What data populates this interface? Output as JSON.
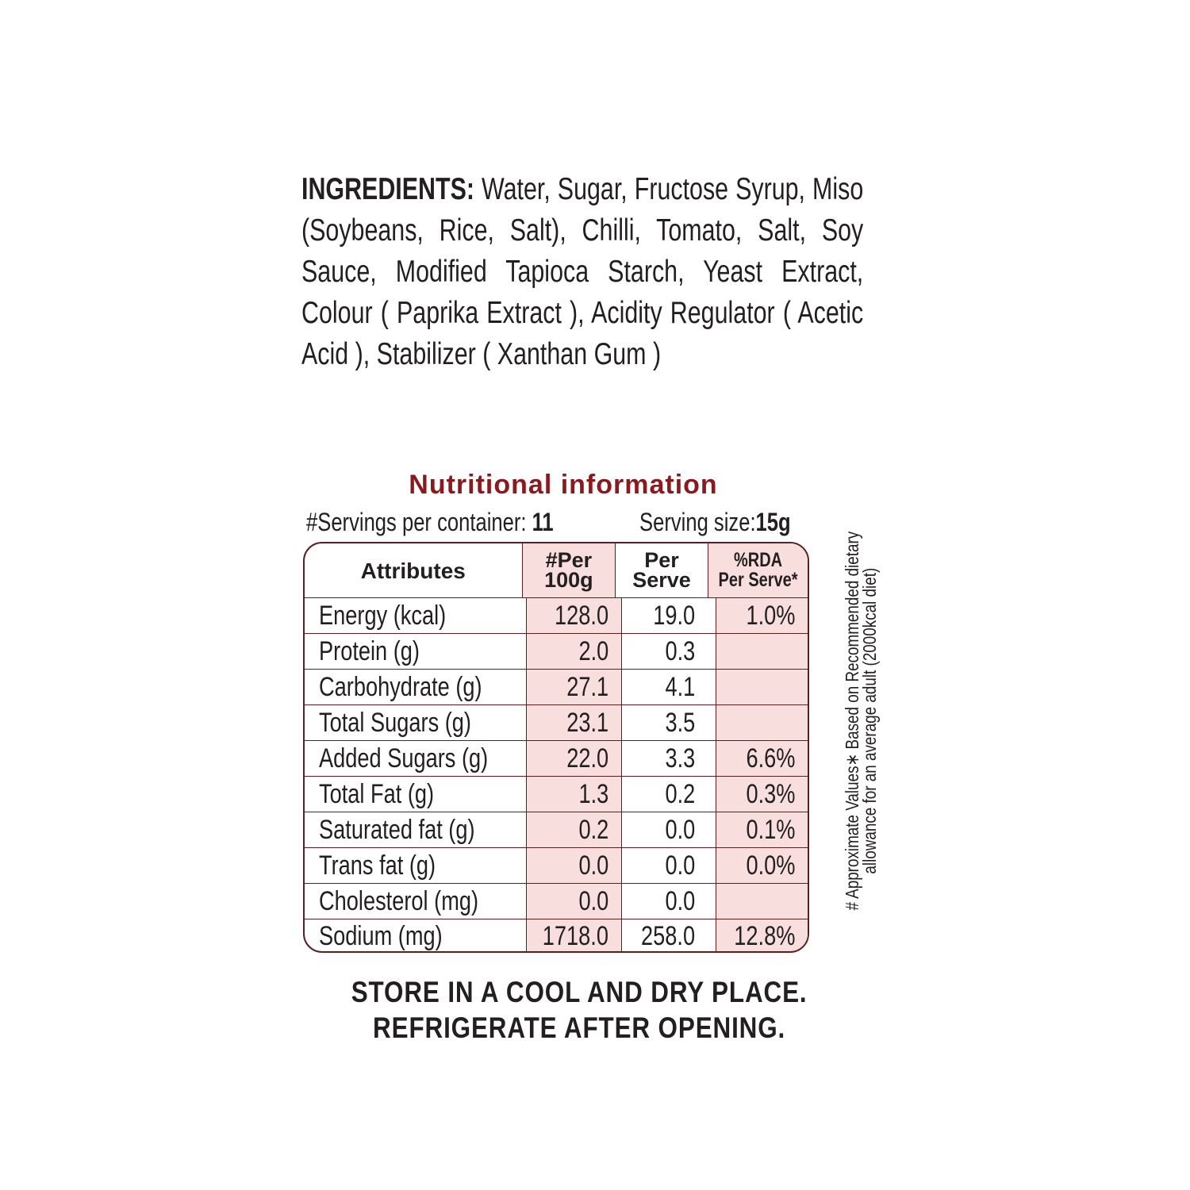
{
  "ingredients": {
    "label": "INGREDIENTS:",
    "text": " Water, Sugar, Fructose Syrup, Miso (Soybeans, Rice, Salt), Chilli, Tomato, Salt, Soy Sauce, Modified Tapioca Starch, Yeast Extract, Colour ( Paprika Extract ), Acidity Regulator ( Acetic Acid ), Stabilizer ( Xanthan Gum )"
  },
  "nutrition": {
    "title": "Nutritional information",
    "servings_label": "#Servings per container: ",
    "servings_value": "11",
    "serving_size_label": "Serving size:",
    "serving_size_value": "15g",
    "headers": [
      "Attributes",
      "#Per",
      "100g",
      "Per",
      "Serve",
      "%RDA",
      "Per Serve*"
    ],
    "rows": [
      [
        "Energy (kcal)",
        "128.0",
        "19.0",
        "1.0%"
      ],
      [
        "Protein (g)",
        "2.0",
        "0.3",
        ""
      ],
      [
        "Carbohydrate (g)",
        "27.1",
        "4.1",
        ""
      ],
      [
        "Total Sugars (g)",
        "23.1",
        "3.5",
        ""
      ],
      [
        "Added Sugars (g)",
        "22.0",
        "3.3",
        "6.6%"
      ],
      [
        "Total Fat (g)",
        "1.3",
        "0.2",
        "0.3%"
      ],
      [
        "Saturated fat (g)",
        "0.2",
        "0.0",
        "0.1%"
      ],
      [
        "Trans fat (g)",
        "0.0",
        "0.0",
        "0.0%"
      ],
      [
        "Cholesterol (mg)",
        "0.0",
        "0.0",
        ""
      ],
      [
        "Sodium (mg)",
        "1718.0",
        "258.0",
        "12.8%"
      ]
    ],
    "footnote_line1": "# Approximate Values∗ Based on Recommended dietary",
    "footnote_line2": "allowance for an average adult (2000kcal diet)"
  },
  "storage": {
    "line1": "STORE IN A COOL AND DRY PLACE.",
    "line2": "REFRIGERATE AFTER OPENING."
  },
  "colors": {
    "title": "#8b1a1f",
    "border": "#5a1f1f",
    "highlight": "#f9dede"
  }
}
